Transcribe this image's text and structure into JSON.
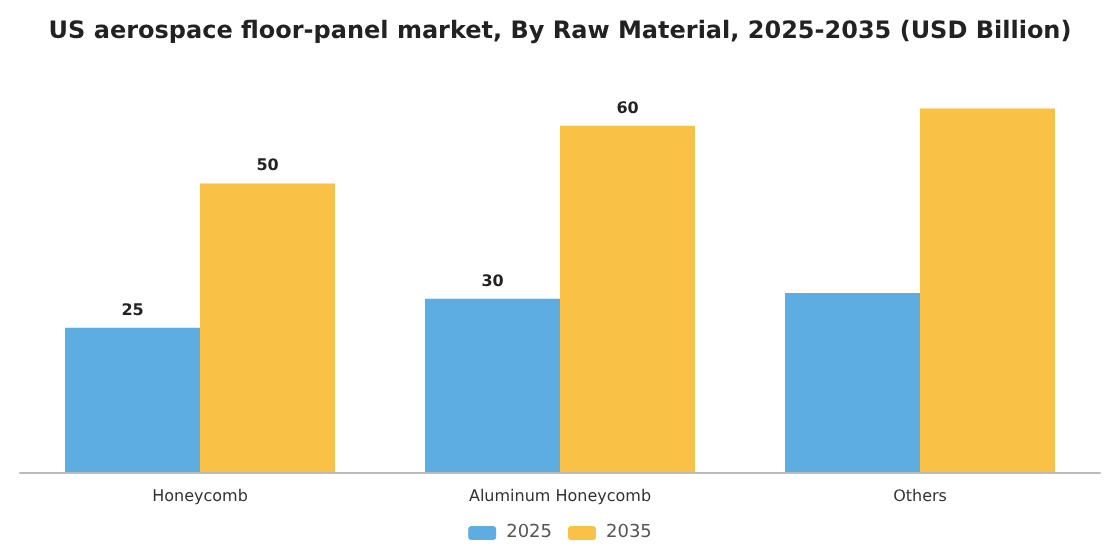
{
  "chart_data": {
    "type": "bar",
    "title": "US aerospace floor-panel market, By Raw Material, 2025-2035 (USD Billion)",
    "categories": [
      "Honeycomb",
      "Aluminum Honeycomb",
      "Others"
    ],
    "series": [
      {
        "name": "2025",
        "color": "#5dade2",
        "values": [
          25,
          30,
          31
        ],
        "value_labels": [
          "25",
          "30",
          null
        ]
      },
      {
        "name": "2035",
        "color": "#f9c146",
        "values": [
          50,
          60,
          63
        ],
        "value_labels": [
          "50",
          "60",
          null
        ]
      }
    ],
    "legend": "bottom"
  }
}
